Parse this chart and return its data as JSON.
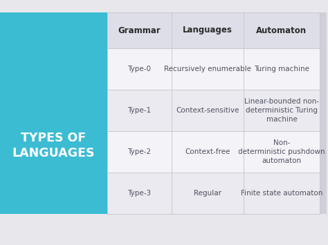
{
  "title_line1": "TYPES OF",
  "title_line2": "LANGUAGES",
  "title_color": "#ffffff",
  "sidebar_color": "#3bbcd3",
  "background_color": "#e8e8ec",
  "table_bg_even": "#f4f4f8",
  "table_bg_odd": "#eaeaf0",
  "header_bg_color": "#dedee8",
  "grid_color": "#c8c8d0",
  "header_row": [
    "Grammar",
    "Languages",
    "Automaton"
  ],
  "header_text_color": "#2a2a2a",
  "body_text_color": "#505060",
  "rows": [
    [
      "Type-0",
      "Recursively enumerable",
      "Turing machine"
    ],
    [
      "Type-1",
      "Context-sensitive",
      "Linear-bounded non-\ndeterministic Turing\nmachine"
    ],
    [
      "Type-2",
      "Context-free",
      "Non-\ndeterministic pushdown\nautomaton"
    ],
    [
      "Type-3",
      "Regular",
      "Finite state automaton"
    ]
  ],
  "header_fontsize": 8.5,
  "body_fontsize": 7.5,
  "title_fontsize": 12.5
}
